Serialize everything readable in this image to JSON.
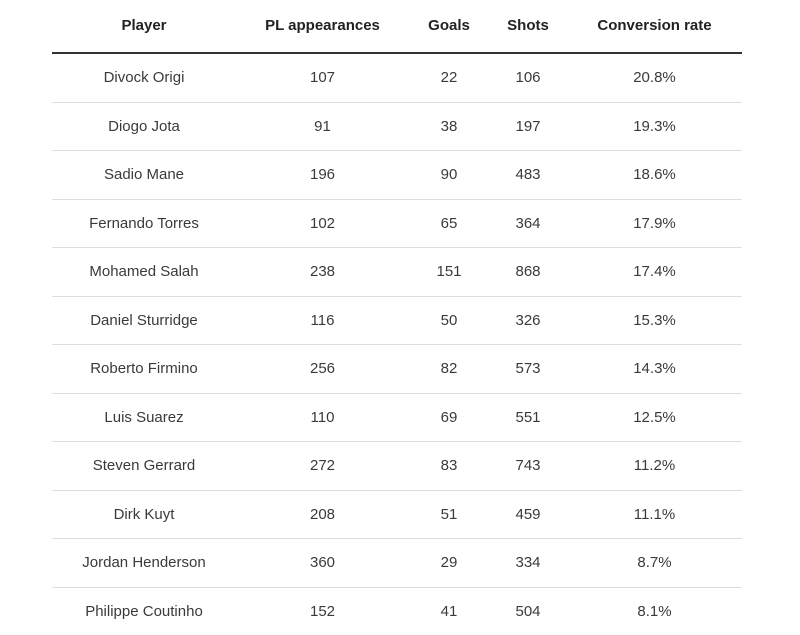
{
  "table": {
    "headers": [
      "Player",
      "PL appearances",
      "Goals",
      "Shots",
      "Conversion rate"
    ],
    "rows": [
      [
        "Divock Origi",
        "107",
        "22",
        "106",
        "20.8%"
      ],
      [
        "Diogo Jota",
        "91",
        "38",
        "197",
        "19.3%"
      ],
      [
        "Sadio Mane",
        "196",
        "90",
        "483",
        "18.6%"
      ],
      [
        "Fernando Torres",
        "102",
        "65",
        "364",
        "17.9%"
      ],
      [
        "Mohamed Salah",
        "238",
        "151",
        "868",
        "17.4%"
      ],
      [
        "Daniel Sturridge",
        "116",
        "50",
        "326",
        "15.3%"
      ],
      [
        "Roberto Firmino",
        "256",
        "82",
        "573",
        "14.3%"
      ],
      [
        "Luis Suarez",
        "110",
        "69",
        "551",
        "12.5%"
      ],
      [
        "Steven Gerrard",
        "272",
        "83",
        "743",
        "11.2%"
      ],
      [
        "Dirk Kuyt",
        "208",
        "51",
        "459",
        "11.1%"
      ],
      [
        "Jordan Henderson",
        "360",
        "29",
        "334",
        "8.7%"
      ],
      [
        "Philippe Coutinho",
        "152",
        "41",
        "504",
        "8.1%"
      ]
    ]
  }
}
